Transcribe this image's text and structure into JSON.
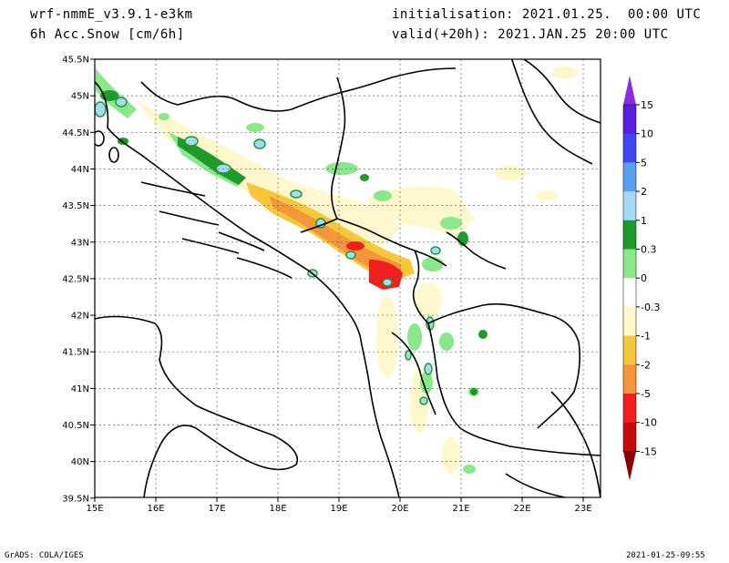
{
  "header": {
    "model": "wrf-nmmE_v3.9.1-e3km",
    "field": "6h Acc.Snow [cm/6h]",
    "init": "initialisation: 2021.01.25.  00:00 UTC",
    "valid": "valid(+20h): 2021.JAN.25 20:00 UTC"
  },
  "axes": {
    "lat_labels": [
      "45.5N",
      "45N",
      "44.5N",
      "44N",
      "43.5N",
      "43N",
      "42.5N",
      "42N",
      "41.5N",
      "41N",
      "40.5N",
      "40N",
      "39.5N"
    ],
    "lon_labels": [
      "15E",
      "16E",
      "17E",
      "18E",
      "19E",
      "20E",
      "21E",
      "22E",
      "23E"
    ]
  },
  "colorbar": {
    "labels": [
      "15",
      "10",
      "5",
      "2",
      "1",
      "0.3",
      "0",
      "-0.3",
      "-1",
      "-2",
      "-5",
      "-10",
      "-15"
    ],
    "colors": [
      "#5a1fe0",
      "#3f47f0",
      "#5aa0f0",
      "#a6d8f8",
      "#1e9a2a",
      "#8ae88a",
      "#ffffff",
      "#fff8cc",
      "#f5c83c",
      "#f5963c",
      "#f01e1e",
      "#c80a0a"
    ],
    "top_arrow_color": "#8a2be2",
    "bottom_arrow_color": "#8b0000"
  },
  "footer": {
    "left": "GrADS: COLA/IGES",
    "right": "2021-01-25-09:55"
  }
}
